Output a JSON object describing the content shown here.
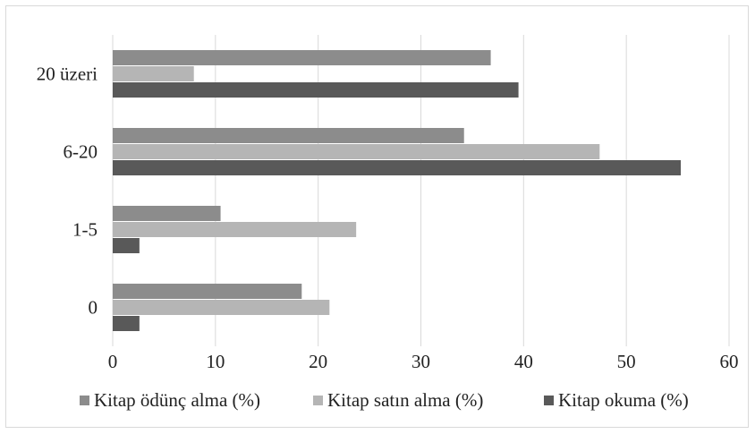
{
  "chart_data": {
    "type": "bar",
    "orientation": "horizontal",
    "categories": [
      "0",
      "1-5",
      "6-20",
      "20 üzeri"
    ],
    "series": [
      {
        "name": "Kitap ödünç alma (%)",
        "color": "#8c8c8c",
        "values": [
          18.4,
          10.5,
          34.2,
          36.8
        ]
      },
      {
        "name": "Kitap satın alma (%)",
        "color": "#b5b5b5",
        "values": [
          21.1,
          23.7,
          47.4,
          7.9
        ]
      },
      {
        "name": "Kitap okuma (%)",
        "color": "#595959",
        "values": [
          2.6,
          2.6,
          55.3,
          39.5
        ]
      }
    ],
    "xlim": [
      0,
      60
    ],
    "xticks": [
      "0",
      "10",
      "20",
      "30",
      "40",
      "50",
      "60"
    ],
    "grid": "vertical",
    "legend_position": "bottom",
    "title": "",
    "xlabel": "",
    "ylabel": ""
  }
}
